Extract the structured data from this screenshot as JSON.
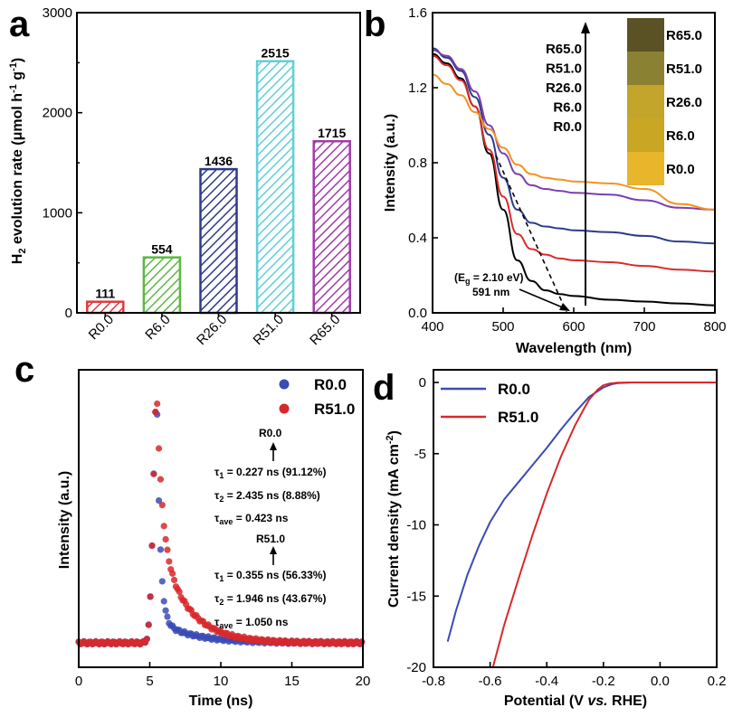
{
  "panels": {
    "a": "a",
    "b": "b",
    "c": "c",
    "d": "d"
  },
  "colors": {
    "R0.0": "#000000",
    "R6.0": "#d92b2b",
    "R26.0": "#2e3a8c",
    "R51.0": "#7b3fb0",
    "R65.0": "#f39221",
    "blue": "#3a4bb5",
    "red": "#d8282b"
  },
  "chart_data": [
    {
      "panel": "a",
      "type": "bar",
      "ylabel": "H2 evolution rate (μmol h-1 g-1)",
      "ylim": [
        0,
        3000
      ],
      "yticks": [
        0,
        1000,
        2000,
        3000
      ],
      "categories": [
        "R0.0",
        "R6.0",
        "R26.0",
        "R51.0",
        "R65.0"
      ],
      "values": [
        111,
        554,
        1436,
        2515,
        1715
      ],
      "value_labels": [
        "111",
        "554",
        "1436",
        "2515",
        "1715"
      ],
      "bar_colors": [
        "#e03a3a",
        "#5cb843",
        "#2e3a8c",
        "#5fcfd8",
        "#a03ca8"
      ]
    },
    {
      "panel": "b",
      "type": "line",
      "xlabel": "Wavelength (nm)",
      "ylabel": "Intensity (a.u.)",
      "xlim": [
        400,
        800
      ],
      "ylim": [
        0,
        1.6
      ],
      "xticks": [
        400,
        500,
        600,
        700,
        800
      ],
      "yticks": [
        "0.0",
        "0.4",
        "0.8",
        "1.2",
        "1.6"
      ],
      "x": [
        400,
        420,
        440,
        460,
        480,
        500,
        520,
        540,
        560,
        580,
        600,
        650,
        700,
        750,
        800
      ],
      "series": [
        {
          "name": "R0.0",
          "color": "#000000",
          "values": [
            1.38,
            1.33,
            1.25,
            1.1,
            0.85,
            0.55,
            0.28,
            0.17,
            0.12,
            0.1,
            0.09,
            0.07,
            0.06,
            0.05,
            0.04
          ]
        },
        {
          "name": "R6.0",
          "color": "#d92b2b",
          "values": [
            1.37,
            1.32,
            1.24,
            1.1,
            0.87,
            0.62,
            0.42,
            0.34,
            0.31,
            0.29,
            0.28,
            0.27,
            0.25,
            0.23,
            0.22
          ]
        },
        {
          "name": "R26.0",
          "color": "#2e3a8c",
          "values": [
            1.41,
            1.36,
            1.29,
            1.15,
            0.95,
            0.72,
            0.55,
            0.48,
            0.46,
            0.45,
            0.44,
            0.43,
            0.41,
            0.38,
            0.37
          ]
        },
        {
          "name": "R51.0",
          "color": "#7b3fb0",
          "values": [
            1.4,
            1.37,
            1.3,
            1.18,
            1.0,
            0.85,
            0.74,
            0.68,
            0.66,
            0.65,
            0.64,
            0.63,
            0.6,
            0.56,
            0.55
          ]
        },
        {
          "name": "R65.0",
          "color": "#f39221",
          "values": [
            1.27,
            1.22,
            1.16,
            1.07,
            0.98,
            0.88,
            0.79,
            0.74,
            0.72,
            0.71,
            0.7,
            0.69,
            0.66,
            0.58,
            0.55
          ]
        }
      ],
      "arrow_labels": [
        "R65.0",
        "R51.0",
        "R26.0",
        "R6.0",
        "R0.0"
      ],
      "swatch_labels": [
        "R65.0",
        "R51.0",
        "R26.0",
        "R6.0",
        "R0.0"
      ],
      "swatch_colors": [
        "#5a5225",
        "#8a8232",
        "#c2a52a",
        "#c9a624",
        "#e7b62a"
      ],
      "annotation": {
        "eg": "(Eg = 2.10 eV)",
        "nm": "591 nm"
      }
    },
    {
      "panel": "c",
      "type": "scatter",
      "xlabel": "Time (ns)",
      "ylabel": "Intensity (a.u.)",
      "xlim": [
        0,
        20
      ],
      "xticks": [
        0,
        5,
        10,
        15,
        20
      ],
      "legend": [
        "R0.0",
        "R51.0"
      ],
      "annotations": {
        "r0_title": "R0.0",
        "r0_t1": "τ1 = 0.227 ns (91.12%)",
        "r0_t2": "τ2 = 2.435 ns (8.88%)",
        "r0_tave": "τave = 0.423 ns",
        "r51_title": "R51.0",
        "r51_t1": "τ1 = 0.355 ns (56.33%)",
        "r51_t2": "τ2 = 1.946 ns (43.67%)",
        "r51_tave": "τave = 1.050 ns"
      },
      "series": [
        {
          "name": "R0.0",
          "color": "#3a4bb5",
          "peak_time": 5.5,
          "rise": 0.25,
          "tau_fast": 0.227,
          "tau_slow": 2.435,
          "frac_fast": 0.9112
        },
        {
          "name": "R51.0",
          "color": "#d8282b",
          "peak_time": 5.5,
          "rise": 0.25,
          "tau_fast": 0.355,
          "tau_slow": 1.946,
          "frac_fast": 0.5633
        }
      ]
    },
    {
      "panel": "d",
      "type": "line",
      "xlabel": "Potential (V vs. RHE)",
      "ylabel": "Current density (mA cm-2)",
      "xlim": [
        -0.8,
        0.2
      ],
      "ylim": [
        -20,
        0
      ],
      "xticks": [
        "-0.8",
        "-0.6",
        "-0.4",
        "-0.2",
        "0.0",
        "0.2"
      ],
      "yticks": [
        "0",
        "-5",
        "-10",
        "-15",
        "-20"
      ],
      "series": [
        {
          "name": "R0.0",
          "color": "#3a4bb5",
          "x": [
            -0.75,
            -0.72,
            -0.68,
            -0.64,
            -0.6,
            -0.55,
            -0.5,
            -0.45,
            -0.4,
            -0.35,
            -0.3,
            -0.25,
            -0.2,
            -0.17,
            -0.15,
            -0.1,
            0.0,
            0.1,
            0.2
          ],
          "values": [
            -18.2,
            -16.0,
            -13.5,
            -11.5,
            -9.8,
            -8.2,
            -7.0,
            -5.8,
            -4.6,
            -3.3,
            -2.1,
            -1.0,
            -0.35,
            -0.12,
            -0.05,
            0,
            0,
            0,
            0
          ]
        },
        {
          "name": "R51.0",
          "color": "#d8282b",
          "x": [
            -0.59,
            -0.55,
            -0.5,
            -0.45,
            -0.4,
            -0.35,
            -0.3,
            -0.27,
            -0.25,
            -0.22,
            -0.2,
            -0.18,
            -0.15,
            -0.1,
            0.0,
            0.1,
            0.2
          ],
          "values": [
            -20.0,
            -17.0,
            -13.8,
            -10.7,
            -7.8,
            -5.2,
            -3.0,
            -1.9,
            -1.2,
            -0.5,
            -0.2,
            -0.08,
            -0.02,
            0,
            0,
            0,
            0
          ]
        }
      ]
    }
  ]
}
